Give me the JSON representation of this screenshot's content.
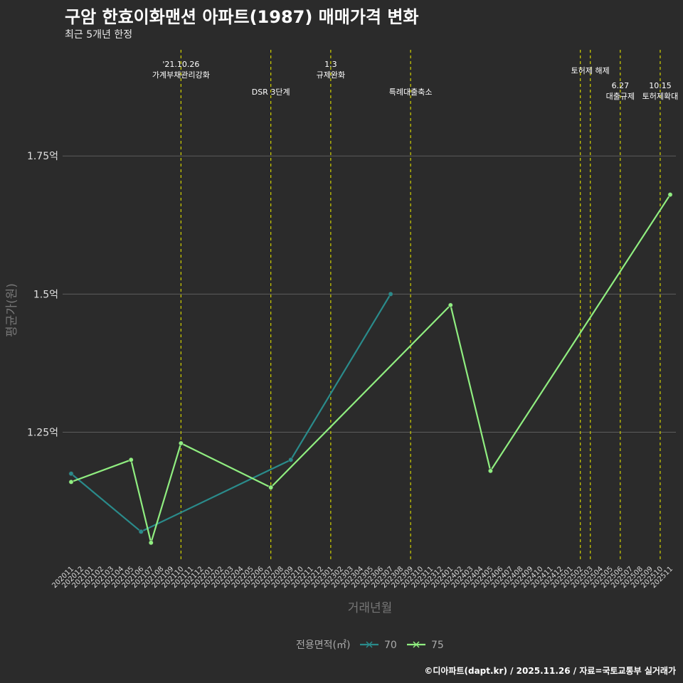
{
  "title": "구암 한효이화맨션 아파트(1987) 매매가격 변화",
  "subtitle": "최근 5개년 한정",
  "caption": "©디아파트(dapt.kr) / 2025.11.26 / 자료=국토교통부 실거래가",
  "colors": {
    "background": "#2b2b2b",
    "grid": "#5c5c5c",
    "policy_line": "#d4d400",
    "series_70": "#2a8b8b",
    "series_75": "#90ee80"
  },
  "chart_data": {
    "type": "line",
    "title": "구암 한효이화맨션 아파트(1987) 매매가격 변화",
    "subtitle": "최근 5개년 한정",
    "xlabel": "거래년월",
    "ylabel": "평균가(원)",
    "ylim": [
      1.015,
      1.955
    ],
    "grid": true,
    "legend_position": "bottom",
    "legend_title": "전용면적(㎡)",
    "y_ticks": [
      {
        "value": 1.25,
        "label": "1.25억"
      },
      {
        "value": 1.5,
        "label": "1.5억"
      },
      {
        "value": 1.75,
        "label": "1.75억"
      }
    ],
    "categories": [
      "202011",
      "202012",
      "202101",
      "202102",
      "202103",
      "202104",
      "202105",
      "202106",
      "202107",
      "202108",
      "202109",
      "202110",
      "202111",
      "202112",
      "202201",
      "202202",
      "202203",
      "202204",
      "202205",
      "202206",
      "202207",
      "202208",
      "202209",
      "202210",
      "202211",
      "202212",
      "202301",
      "202302",
      "202303",
      "202304",
      "202305",
      "202306",
      "202307",
      "202308",
      "202309",
      "202310",
      "202311",
      "202312",
      "202401",
      "202402",
      "202403",
      "202404",
      "202405",
      "202406",
      "202407",
      "202408",
      "202409",
      "202410",
      "202411",
      "202412",
      "202501",
      "202502",
      "202503",
      "202504",
      "202505",
      "202506",
      "202507",
      "202508",
      "202509",
      "202510",
      "202511"
    ],
    "series": [
      {
        "name": "70",
        "color": "#2a8b8b",
        "points": [
          {
            "x": "202011",
            "y": 1.175
          },
          {
            "x": "202106",
            "y": 1.07
          },
          {
            "x": "202209",
            "y": 1.2
          },
          {
            "x": "202307",
            "y": 1.5
          }
        ]
      },
      {
        "name": "75",
        "color": "#90ee80",
        "points": [
          {
            "x": "202011",
            "y": 1.16
          },
          {
            "x": "202105",
            "y": 1.2
          },
          {
            "x": "202107",
            "y": 1.05
          },
          {
            "x": "202110",
            "y": 1.23
          },
          {
            "x": "202207",
            "y": 1.15
          },
          {
            "x": "202401",
            "y": 1.48
          },
          {
            "x": "202405",
            "y": 1.18
          },
          {
            "x": "202511",
            "y": 1.68
          }
        ]
      }
    ],
    "annotations": [
      {
        "x": "202110",
        "offset": 0.0,
        "lines": [
          "'21.10.26",
          "가계부채관리강화"
        ],
        "row": 0
      },
      {
        "x": "202207",
        "offset": 0.0,
        "lines": [
          "DSR 3단계"
        ],
        "row": 2
      },
      {
        "x": "202301",
        "offset": 0.0,
        "lines": [
          "1.3",
          "규제완화"
        ],
        "row": 0
      },
      {
        "x": "202309",
        "offset": 0.0,
        "lines": [
          "특례대출축소"
        ],
        "row": 2
      },
      {
        "x": "202502",
        "offset": 0.0,
        "lines": [
          ""
        ],
        "row": 0
      },
      {
        "x": "202503",
        "offset": 0.0,
        "lines": [
          "토허제 해제"
        ],
        "row": 1
      },
      {
        "x": "202506",
        "offset": 0.0,
        "lines": [
          "6.27",
          "대출규제"
        ],
        "row": 3
      },
      {
        "x": "202510",
        "offset": 0.0,
        "lines": [
          "10.15",
          "토허제확대"
        ],
        "row": 3
      }
    ]
  }
}
